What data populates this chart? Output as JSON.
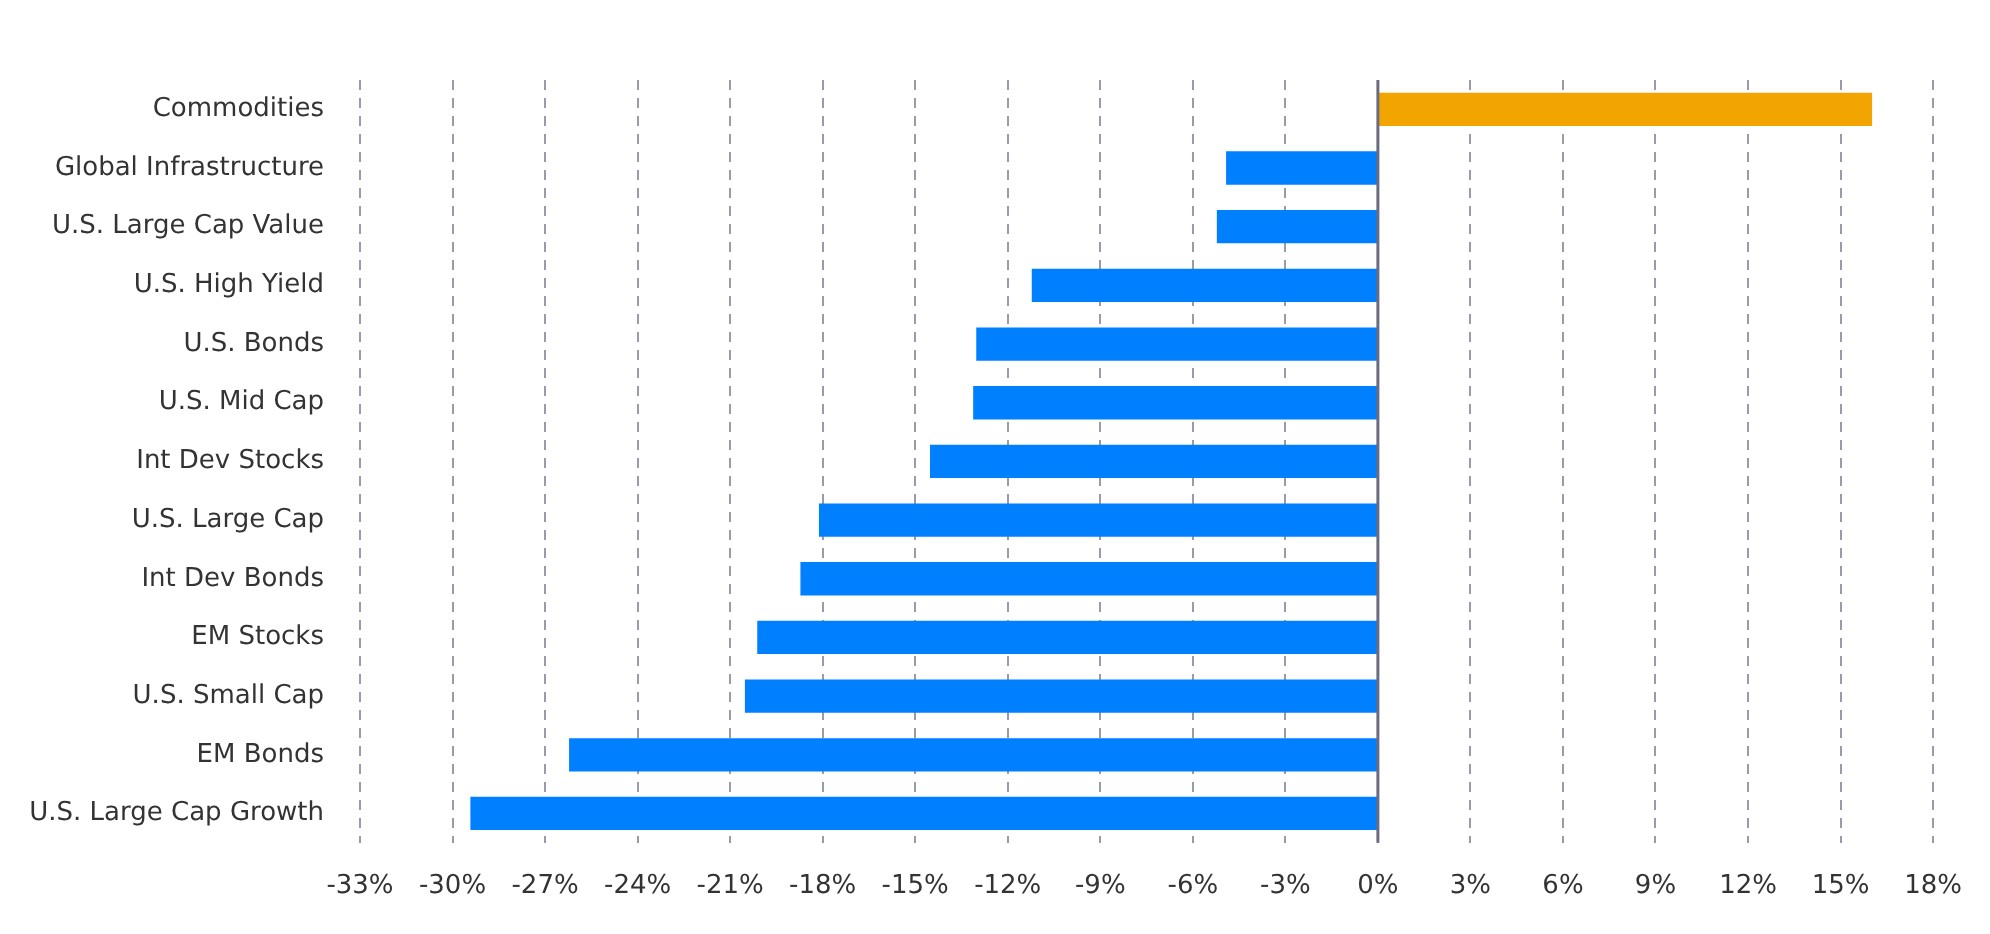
{
  "chart_data": {
    "type": "bar",
    "orientation": "horizontal",
    "categories": [
      "Commodities",
      "Global Infrastructure",
      "U.S. Large Cap Value",
      "U.S. High Yield",
      "U.S. Bonds",
      "U.S. Mid Cap",
      "Int Dev Stocks",
      "U.S. Large Cap",
      "Int Dev Bonds",
      "EM Stocks",
      "U.S. Small Cap",
      "EM Bonds",
      "U.S. Large Cap Growth"
    ],
    "values": [
      16.0,
      -4.9,
      -5.2,
      -11.2,
      -13.0,
      -13.1,
      -14.5,
      -18.1,
      -18.7,
      -20.1,
      -20.5,
      -26.2,
      -29.4
    ],
    "colors": [
      "#f2a500",
      "#0080ff",
      "#0080ff",
      "#0080ff",
      "#0080ff",
      "#0080ff",
      "#0080ff",
      "#0080ff",
      "#0080ff",
      "#0080ff",
      "#0080ff",
      "#0080ff",
      "#0080ff"
    ],
    "xlim": [
      -33,
      18
    ],
    "xticks": [
      {
        "value": -33,
        "label": "-33%"
      },
      {
        "value": -30,
        "label": "-30%"
      },
      {
        "value": -27,
        "label": "-27%"
      },
      {
        "value": -24,
        "label": "-24%"
      },
      {
        "value": -21,
        "label": "-21%"
      },
      {
        "value": -18,
        "label": "-18%"
      },
      {
        "value": -15,
        "label": "-15%"
      },
      {
        "value": -12,
        "label": "-12%"
      },
      {
        "value": -9,
        "label": "-9%"
      },
      {
        "value": -6,
        "label": "-6%"
      },
      {
        "value": -3,
        "label": "-3%"
      },
      {
        "value": 0,
        "label": "0%"
      },
      {
        "value": 3,
        "label": "3%"
      },
      {
        "value": 6,
        "label": "6%"
      },
      {
        "value": 9,
        "label": "9%"
      },
      {
        "value": 12,
        "label": "12%"
      },
      {
        "value": 15,
        "label": "15%"
      },
      {
        "value": 18,
        "label": "18%"
      }
    ],
    "ref_lines": [
      {
        "axis": "x",
        "value": 0,
        "color": "#6b6b80",
        "line_style": "solid"
      }
    ],
    "grid": "x",
    "legend": false
  }
}
